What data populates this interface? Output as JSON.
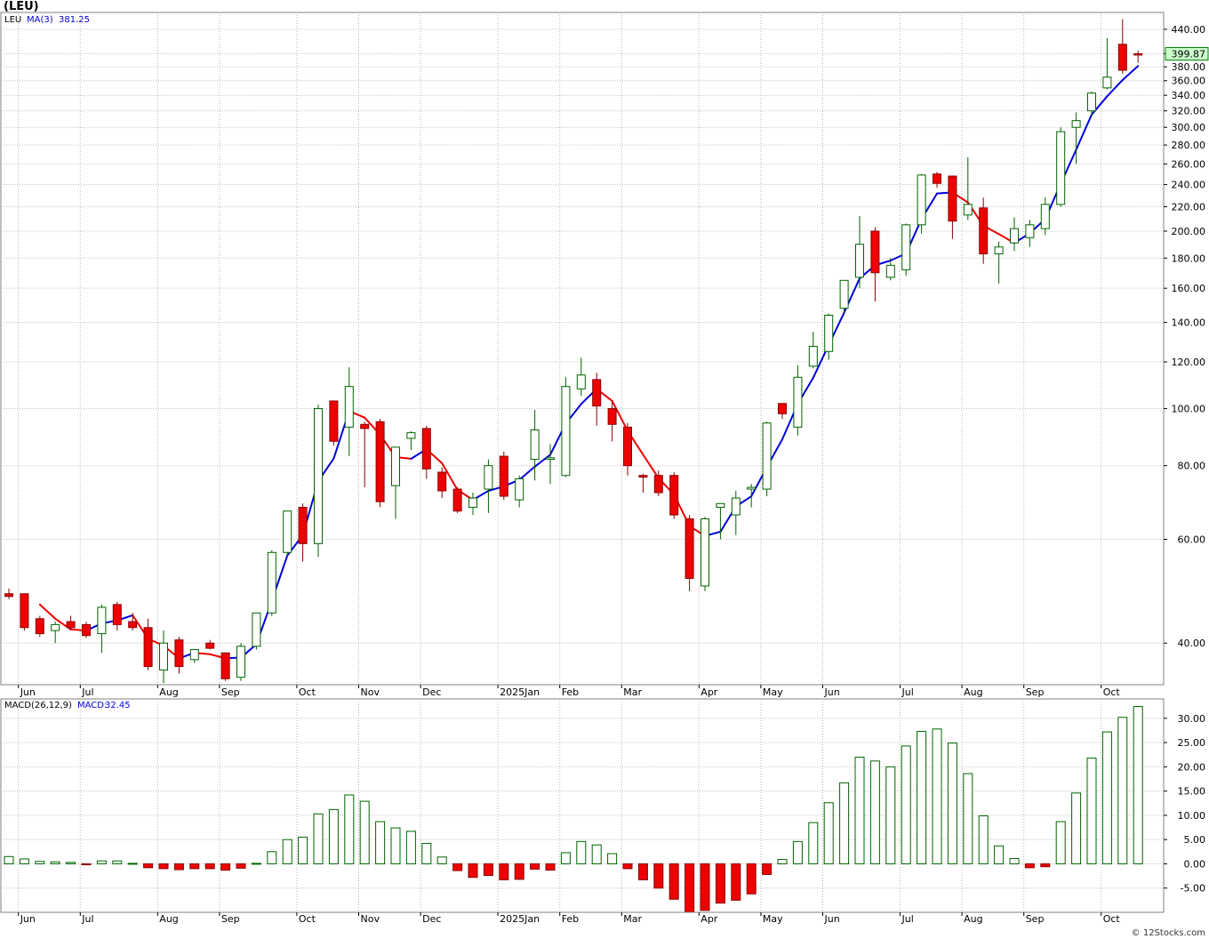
{
  "symbol_label": "(LEU)",
  "watermark": "© 12Stocks.com",
  "colors": {
    "up": "#ffffff",
    "up_stroke": "#006400",
    "down": "#ee0000",
    "ma_up": "#0000dd",
    "ma_down": "#ee0000",
    "grid": "#b8b8b8",
    "last_price_bg": "#ccffcc"
  },
  "chart_data": [
    {
      "type": "candlestick",
      "id": "price",
      "scale": "log",
      "ylim": [
        34,
        470
      ],
      "legend": {
        "ticker": "LEU",
        "ma_label": "MA(3)",
        "ma_value": "381.25"
      },
      "last_price": "399.87",
      "y_ticks": [
        "40.00",
        "60.00",
        "80.00",
        "100.00",
        "120.00",
        "140.00",
        "160.00",
        "180.00",
        "200.00",
        "220.00",
        "240.00",
        "260.00",
        "280.00",
        "300.00",
        "320.00",
        "340.00",
        "360.00",
        "380.00",
        "400.00",
        "440.00"
      ],
      "x_labels": [
        {
          "label": "Jun",
          "i": 1
        },
        {
          "label": "Jul",
          "i": 5
        },
        {
          "label": "Aug",
          "i": 10
        },
        {
          "label": "Sep",
          "i": 14
        },
        {
          "label": "Oct",
          "i": 19
        },
        {
          "label": "Nov",
          "i": 23
        },
        {
          "label": "Dec",
          "i": 27
        },
        {
          "label": "2025Jan",
          "i": 32
        },
        {
          "label": "Feb",
          "i": 36
        },
        {
          "label": "Mar",
          "i": 40
        },
        {
          "label": "Apr",
          "i": 45
        },
        {
          "label": "May",
          "i": 49
        },
        {
          "label": "Jun",
          "i": 53
        },
        {
          "label": "Jul",
          "i": 58
        },
        {
          "label": "Aug",
          "i": 62
        },
        {
          "label": "Sep",
          "i": 66
        },
        {
          "label": "Oct",
          "i": 71
        }
      ],
      "candles": [
        [
          48.5,
          49.5,
          47.5,
          48.0
        ],
        [
          48.5,
          48.5,
          42.0,
          42.5
        ],
        [
          44.0,
          44.5,
          41.0,
          41.5
        ],
        [
          42.0,
          43.5,
          40.0,
          43.0
        ],
        [
          43.5,
          44.5,
          42.0,
          42.5
        ],
        [
          43.0,
          43.5,
          40.8,
          41.2
        ],
        [
          41.5,
          46.5,
          38.5,
          46.0
        ],
        [
          46.5,
          47.0,
          42.0,
          43.0
        ],
        [
          43.5,
          45.0,
          42.0,
          42.5
        ],
        [
          42.5,
          44.0,
          36.0,
          36.5
        ],
        [
          36.0,
          42.0,
          34.2,
          40.0
        ],
        [
          40.5,
          41.0,
          35.5,
          36.5
        ],
        [
          37.5,
          39.0,
          37.0,
          39.0
        ],
        [
          40.0,
          40.5,
          39.0,
          39.2
        ],
        [
          38.5,
          38.5,
          34.5,
          34.8
        ],
        [
          35.0,
          40.0,
          34.5,
          39.5
        ],
        [
          39.5,
          45.0,
          39.0,
          45.0
        ],
        [
          45.0,
          57.5,
          44.5,
          57.0
        ],
        [
          57.0,
          67.0,
          56.0,
          67.0
        ],
        [
          68.0,
          69.0,
          55.0,
          59.0
        ],
        [
          59.0,
          101.5,
          56.0,
          100.0
        ],
        [
          103.0,
          103.0,
          86.5,
          88.0
        ],
        [
          93.0,
          117.5,
          83.0,
          109.0
        ],
        [
          94.0,
          95.0,
          73.5,
          92.5
        ],
        [
          95.0,
          96.0,
          68.0,
          69.5
        ],
        [
          74.0,
          86.0,
          65.0,
          86.0
        ],
        [
          89.0,
          91.5,
          85.0,
          91.0
        ],
        [
          92.5,
          93.5,
          76.0,
          79.0
        ],
        [
          78.0,
          79.5,
          70.5,
          72.5
        ],
        [
          73.0,
          73.5,
          66.5,
          67.0
        ],
        [
          68.0,
          72.0,
          66.0,
          70.5
        ],
        [
          73.0,
          82.0,
          66.5,
          80.0
        ],
        [
          83.0,
          84.5,
          70.0,
          71.0
        ],
        [
          70.0,
          77.0,
          68.0,
          76.0
        ],
        [
          82.0,
          99.5,
          75.5,
          92.0
        ],
        [
          82.0,
          87.0,
          74.5,
          82.5
        ],
        [
          77.0,
          113.0,
          76.5,
          109.0
        ],
        [
          108.0,
          122.0,
          105.0,
          114.0
        ],
        [
          112.0,
          115.0,
          93.5,
          101.0
        ],
        [
          100.0,
          103.0,
          88.0,
          94.0
        ],
        [
          93.0,
          94.5,
          77.0,
          80.0
        ],
        [
          77.0,
          77.5,
          72.0,
          76.5
        ],
        [
          77.0,
          78.5,
          71.0,
          72.0
        ],
        [
          77.0,
          78.0,
          65.0,
          66.0
        ],
        [
          65.0,
          66.0,
          49.0,
          51.5
        ],
        [
          50.0,
          65.5,
          49.0,
          65.0
        ],
        [
          68.0,
          69.0,
          60.0,
          69.0
        ],
        [
          66.0,
          72.5,
          61.0,
          70.5
        ],
        [
          73.0,
          74.5,
          68.0,
          73.5
        ],
        [
          73.0,
          95.0,
          71.0,
          94.5
        ],
        [
          102.0,
          102.0,
          96.0,
          98.0
        ],
        [
          93.0,
          118.5,
          90.0,
          113.0
        ],
        [
          118.0,
          135.0,
          117.0,
          127.5
        ],
        [
          125.0,
          145.0,
          121.0,
          144.0
        ],
        [
          148.0,
          165.0,
          145.0,
          165.0
        ],
        [
          167.0,
          212.0,
          160.0,
          190.0
        ],
        [
          200.0,
          203.0,
          152.0,
          170.0
        ],
        [
          167.0,
          180.0,
          165.0,
          175.0
        ],
        [
          172.0,
          206.0,
          168.0,
          205.0
        ],
        [
          205.0,
          250.0,
          198.0,
          249.0
        ],
        [
          250.0,
          252.0,
          237.0,
          241.0
        ],
        [
          248.0,
          248.0,
          194.0,
          208.0
        ],
        [
          213.0,
          267.0,
          209.0,
          222.0
        ],
        [
          219.0,
          228.0,
          176.0,
          183.0
        ],
        [
          183.0,
          192.0,
          163.0,
          188.0
        ],
        [
          191.0,
          211.0,
          185.0,
          202.0
        ],
        [
          195.0,
          209.0,
          188.0,
          205.0
        ],
        [
          202.0,
          228.0,
          197.0,
          222.0
        ],
        [
          222.0,
          300.0,
          220.0,
          295.0
        ],
        [
          300.0,
          318.0,
          260.0,
          308.0
        ],
        [
          320.0,
          345.0,
          313.0,
          343.0
        ],
        [
          350.0,
          425.0,
          348.0,
          365.0
        ],
        [
          415.0,
          458.0,
          370.0,
          375.0
        ],
        [
          400.0,
          405.0,
          386.0,
          399.87
        ]
      ],
      "ma": [
        null,
        null,
        46.5,
        44.0,
        42.2,
        42.0,
        43.2,
        43.7,
        44.6,
        40.7,
        39.6,
        37.7,
        38.5,
        38.3,
        37.7,
        37.8,
        39.8,
        47.2,
        56.3,
        61.0,
        75.3,
        82.3,
        99.0,
        96.5,
        90.3,
        82.7,
        82.2,
        85.3,
        80.8,
        72.8,
        70.0,
        72.5,
        73.8,
        75.7,
        79.7,
        83.5,
        94.3,
        101.8,
        108.0,
        103.0,
        91.7,
        83.5,
        76.2,
        71.5,
        63.2,
        60.8,
        61.8,
        68.2,
        71.0,
        79.5,
        88.7,
        101.8,
        112.8,
        128.2,
        145.5,
        166.3,
        175.0,
        178.3,
        183.3,
        209.7,
        231.7,
        232.7,
        223.7,
        204.3,
        197.7,
        191.0,
        198.3,
        209.7,
        240.7,
        275.0,
        315.3,
        338.7,
        361.0,
        381.25
      ]
    },
    {
      "type": "bar",
      "id": "macd",
      "ylim": [
        -10,
        34
      ],
      "legend": {
        "params": "MACD(26,12,9)",
        "label": "MACD:",
        "value": "32.45"
      },
      "y_ticks": [
        "30.00",
        "25.00",
        "20.00",
        "15.00",
        "10.00",
        "5.00",
        "0.00",
        "-5.00"
      ],
      "x_labels": [
        {
          "label": "Jun",
          "i": 1
        },
        {
          "label": "Jul",
          "i": 5
        },
        {
          "label": "Aug",
          "i": 10
        },
        {
          "label": "Sep",
          "i": 14
        },
        {
          "label": "Oct",
          "i": 19
        },
        {
          "label": "Nov",
          "i": 23
        },
        {
          "label": "Dec",
          "i": 27
        },
        {
          "label": "2025Jan",
          "i": 32
        },
        {
          "label": "Feb",
          "i": 36
        },
        {
          "label": "Mar",
          "i": 40
        },
        {
          "label": "Apr",
          "i": 45
        },
        {
          "label": "May",
          "i": 49
        },
        {
          "label": "Jun",
          "i": 53
        },
        {
          "label": "Jul",
          "i": 58
        },
        {
          "label": "Aug",
          "i": 62
        },
        {
          "label": "Sep",
          "i": 66
        },
        {
          "label": "Oct",
          "i": 71
        }
      ],
      "values": [
        1.5,
        1.0,
        0.5,
        0.4,
        0.3,
        -0.2,
        0.6,
        0.6,
        0.1,
        -0.8,
        -1.0,
        -1.2,
        -1.0,
        -1.0,
        -1.3,
        -0.9,
        0.1,
        2.5,
        5.0,
        5.5,
        10.3,
        11.2,
        14.2,
        12.9,
        8.7,
        7.4,
        6.7,
        4.2,
        1.4,
        -1.4,
        -2.8,
        -2.4,
        -3.3,
        -3.2,
        -1.1,
        -1.3,
        2.3,
        4.6,
        3.9,
        2.1,
        -1.0,
        -3.3,
        -5.0,
        -7.3,
        -10.0,
        -9.6,
        -8.1,
        -7.5,
        -6.2,
        -2.2,
        0.9,
        4.6,
        8.5,
        12.6,
        16.7,
        22.0,
        21.2,
        20.0,
        24.3,
        27.3,
        27.8,
        24.9,
        18.6,
        9.9,
        3.7,
        1.1,
        -0.8,
        -0.6,
        8.7,
        14.6,
        21.8,
        27.2,
        30.2,
        32.45
      ]
    }
  ]
}
